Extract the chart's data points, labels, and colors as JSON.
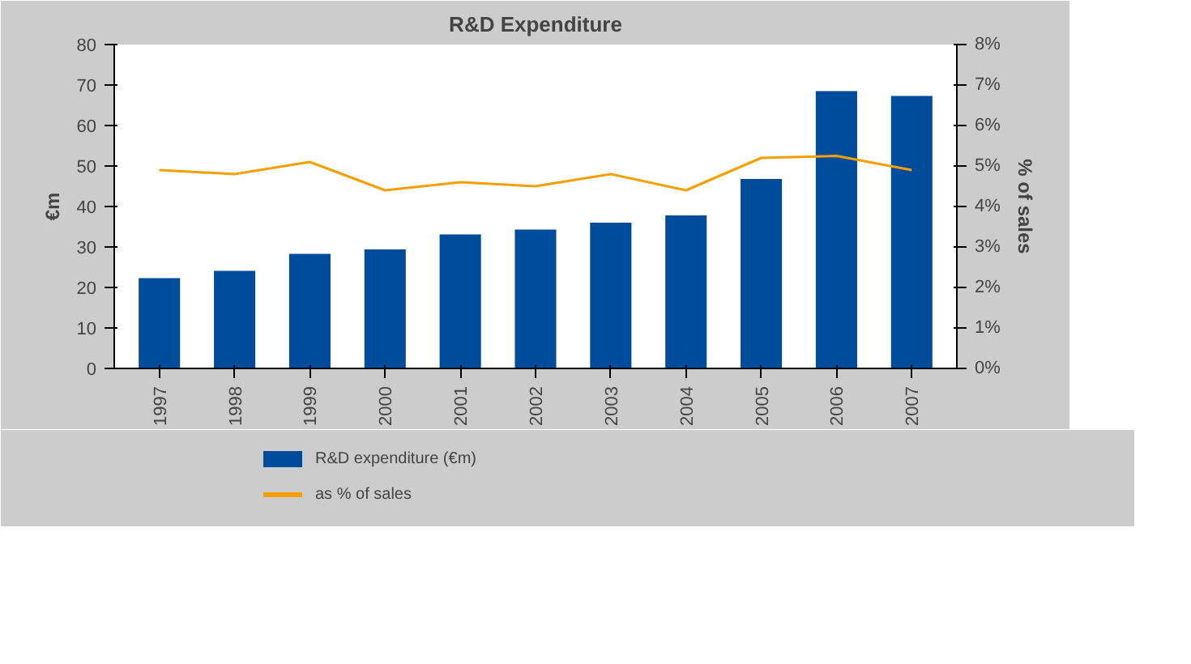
{
  "chart_data": {
    "type": "bar",
    "title": "R&D Expenditure",
    "ylabel": "€m",
    "y2label": "% of sales",
    "categories": [
      "1997",
      "1998",
      "1999",
      "2000",
      "2001",
      "2002",
      "2003",
      "2004",
      "2005",
      "2006",
      "2007"
    ],
    "series": [
      {
        "name": "R&D expenditure (€m)",
        "color": "#004c9c",
        "values": [
          22.3,
          24.1,
          28.3,
          29.4,
          33.1,
          34.3,
          36,
          37.8,
          46.8,
          68.5,
          67.3
        ]
      },
      {
        "name": "as % of sales",
        "type": "line",
        "axis": "y2",
        "color": "#f5a000",
        "values": [
          4.9,
          4.8,
          5.1,
          4.4,
          4.6,
          4.5,
          4.8,
          4.4,
          5.2,
          5.25,
          4.9
        ]
      }
    ],
    "ylim": [
      0,
      80
    ],
    "yticks": [
      0,
      10,
      20,
      30,
      40,
      50,
      60,
      70,
      80
    ],
    "y2lim": [
      0,
      8
    ],
    "y2ticks": [
      {
        "value": 0,
        "label": "0%"
      },
      {
        "value": 1,
        "label": "1%"
      },
      {
        "value": 2,
        "label": "2%"
      },
      {
        "value": 3,
        "label": "3%"
      },
      {
        "value": 4,
        "label": "4%"
      },
      {
        "value": 5,
        "label": "5%"
      },
      {
        "value": 6,
        "label": "6%"
      },
      {
        "value": 7,
        "label": "7%"
      },
      {
        "value": 8,
        "label": "8%"
      }
    ],
    "grid": false,
    "legend": "bottom"
  }
}
